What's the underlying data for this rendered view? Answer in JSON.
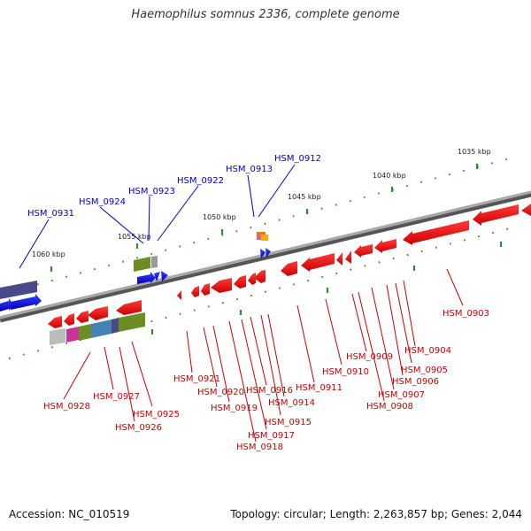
{
  "title": "Haemophilus somnus 2336, complete genome",
  "footer": {
    "accession": "Accession: NC_010519",
    "info": "Topology: circular; Length: 2,263,857 bp; Genes: 2,044"
  },
  "colors": {
    "backbone": "#8a8a8a",
    "forward_gene": "#0000dd",
    "reverse_gene": "#ee0000",
    "forward_label": "#0000cc",
    "reverse_label": "#cc0000",
    "tick": "#2e8b2e"
  },
  "scale_labels": [
    "1035 kbp",
    "1040 kbp",
    "1045 kbp",
    "1050 kbp",
    "1055 kbp",
    "1060 kbp"
  ],
  "forward_genes": [
    "HSM_0912",
    "HSM_0913",
    "HSM_0922",
    "HSM_0923",
    "HSM_0924",
    "HSM_0931"
  ],
  "reverse_genes": [
    "HSM_0903",
    "HSM_0904",
    "HSM_0905",
    "HSM_0906",
    "HSM_0907",
    "HSM_0908",
    "HSM_0909",
    "HSM_0910",
    "HSM_0911",
    "HSM_0914",
    "HSM_0915",
    "HSM_0916",
    "HSM_0917",
    "HSM_0918",
    "HSM_0919",
    "HSM_0920",
    "HSM_0921",
    "HSM_0925",
    "HSM_0926",
    "HSM_0927",
    "HSM_0928"
  ]
}
